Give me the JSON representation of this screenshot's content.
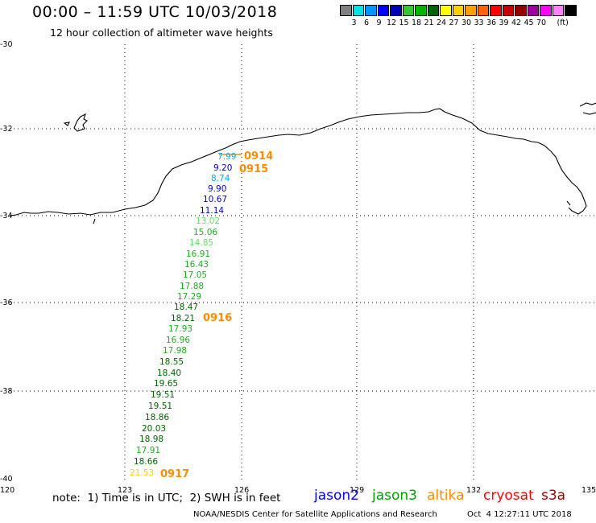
{
  "header": {
    "title": "00:00 – 11:59 UTC 10/03/2018",
    "subtitle": "12 hour collection of altimeter wave heights"
  },
  "legend": {
    "colors": [
      "#808080",
      "#00e5e5",
      "#0096ff",
      "#0000ff",
      "#0000b4",
      "#32c832",
      "#00b400",
      "#006400",
      "#ffff00",
      "#ffd000",
      "#ffa000",
      "#ff6400",
      "#ff0000",
      "#c80000",
      "#960000",
      "#a000a0",
      "#ff00ff",
      "#ff80ff",
      "#000000"
    ],
    "labels": [
      "3",
      "6",
      "9",
      "12",
      "15",
      "18",
      "21",
      "24",
      "27",
      "30",
      "33",
      "36",
      "39",
      "42",
      "45",
      "70"
    ],
    "unit": "(ft)"
  },
  "axes": {
    "lon_labels": [
      "120",
      "123",
      "126",
      "129",
      "132",
      "135"
    ],
    "lat_labels": [
      "-30",
      "-32",
      "-34",
      "-36",
      "-38",
      "-40"
    ]
  },
  "observations": [
    {
      "value": "7.99",
      "color": "#00aaff"
    },
    {
      "value": "9.20",
      "color": "#0000cc"
    },
    {
      "value": "8.74",
      "color": "#00aaff"
    },
    {
      "value": "9.90",
      "color": "#0000cc"
    },
    {
      "value": "10.67",
      "color": "#0000cc"
    },
    {
      "value": "11.14",
      "color": "#0000cc"
    },
    {
      "value": "13.02",
      "color": "#66dd66"
    },
    {
      "value": "15.06",
      "color": "#22aa22"
    },
    {
      "value": "14.85",
      "color": "#66dd66"
    },
    {
      "value": "16.91",
      "color": "#22aa22"
    },
    {
      "value": "16.43",
      "color": "#22aa22"
    },
    {
      "value": "17.05",
      "color": "#22aa22"
    },
    {
      "value": "17.88",
      "color": "#22aa22"
    },
    {
      "value": "17.29",
      "color": "#22aa22"
    },
    {
      "value": "18.47",
      "color": "#006400"
    },
    {
      "value": "18.21",
      "color": "#006400"
    },
    {
      "value": "17.93",
      "color": "#22aa22"
    },
    {
      "value": "16.96",
      "color": "#22aa22"
    },
    {
      "value": "17.98",
      "color": "#22aa22"
    },
    {
      "value": "18.55",
      "color": "#006400"
    },
    {
      "value": "18.40",
      "color": "#006400"
    },
    {
      "value": "19.65",
      "color": "#006400"
    },
    {
      "value": "19.51",
      "color": "#006400"
    },
    {
      "value": "19.51",
      "color": "#006400"
    },
    {
      "value": "18.86",
      "color": "#006400"
    },
    {
      "value": "20.03",
      "color": "#006400"
    },
    {
      "value": "18.98",
      "color": "#006400"
    },
    {
      "value": "17.91",
      "color": "#22aa22"
    },
    {
      "value": "18.66",
      "color": "#006400"
    },
    {
      "value": "21.53",
      "color": "#ffd000"
    }
  ],
  "pass_times": [
    "0914",
    "0915",
    "0916",
    "0917"
  ],
  "footer": {
    "note": "note:  1) Time is in UTC;  2) SWH is in feet",
    "satellites": [
      {
        "name": "jason2",
        "color": "#0000ff"
      },
      {
        "name": "jason3",
        "color": "#00a000"
      },
      {
        "name": "altika",
        "color": "#ff8c00"
      },
      {
        "name": "cryosat",
        "color": "#ff0000"
      },
      {
        "name": "s3a",
        "color": "#a00000"
      }
    ],
    "credit": "NOAA/NESDIS Center for Satellite Applications and Research",
    "timestamp": "Oct  4 12:27:11 UTC 2018"
  }
}
